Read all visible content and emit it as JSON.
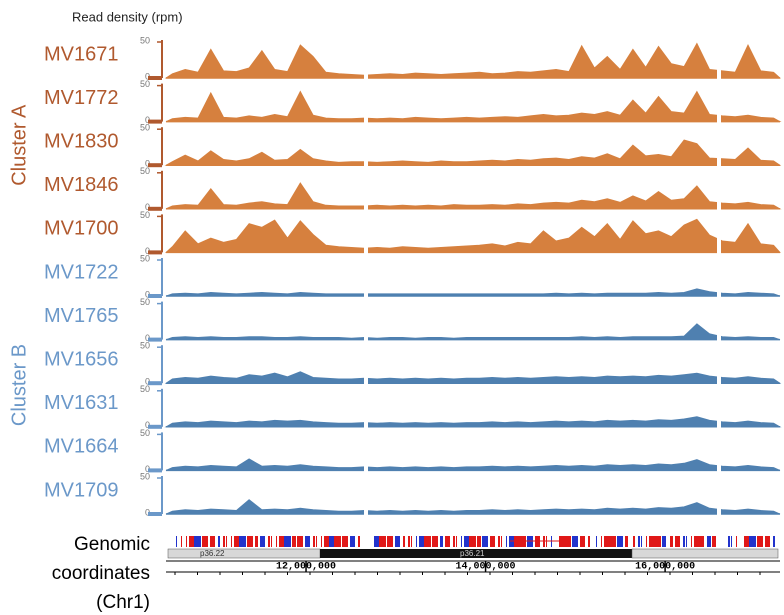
{
  "chart_data": {
    "type": "area",
    "y_label": "Read density (rpm)",
    "ylim": [
      0,
      50
    ],
    "yticks": [
      50,
      0
    ],
    "xlim": [
      10440000,
      17280000
    ],
    "xticks": [
      {
        "value": 12000000,
        "label": "12,000,000"
      },
      {
        "value": 14000000,
        "label": "14,000,000"
      },
      {
        "value": 16000000,
        "label": "16,000,000"
      }
    ],
    "x_label": [
      "Genomic",
      "coordinates",
      "(Chr1)"
    ],
    "bands": [
      "p36.22",
      "p36.21"
    ],
    "groups": [
      {
        "name": "Cluster A",
        "color": "#b0592e"
      },
      {
        "name": "Cluster B",
        "color": "#6b98c9"
      }
    ],
    "series": [
      {
        "name": "MV1671",
        "group": 0,
        "color": "#d6803e",
        "values": [
          6,
          12,
          8,
          40,
          10,
          9,
          14,
          38,
          12,
          9,
          46,
          30,
          8,
          6,
          5,
          4,
          5,
          6,
          5,
          7,
          6,
          5,
          6,
          7,
          8,
          6,
          7,
          9,
          8,
          10,
          12,
          9,
          45,
          14,
          30,
          12,
          40,
          15,
          44,
          20,
          16,
          48,
          12,
          10,
          8,
          46,
          10,
          8
        ]
      },
      {
        "name": "MV1772",
        "group": 0,
        "color": "#d6803e",
        "values": [
          4,
          6,
          5,
          40,
          6,
          5,
          8,
          6,
          10,
          7,
          42,
          9,
          5,
          4,
          4,
          5,
          4,
          5,
          4,
          6,
          5,
          4,
          5,
          6,
          5,
          6,
          7,
          6,
          8,
          10,
          8,
          9,
          12,
          10,
          14,
          9,
          30,
          12,
          35,
          14,
          12,
          42,
          10,
          8,
          7,
          9,
          6,
          5
        ]
      },
      {
        "name": "MV1830",
        "group": 0,
        "color": "#d6803e",
        "values": [
          5,
          14,
          6,
          20,
          8,
          6,
          9,
          18,
          7,
          8,
          22,
          9,
          6,
          4,
          5,
          5,
          4,
          5,
          6,
          5,
          4,
          6,
          5,
          5,
          6,
          7,
          6,
          8,
          7,
          9,
          10,
          8,
          12,
          10,
          16,
          9,
          28,
          13,
          15,
          12,
          35,
          30,
          10,
          9,
          8,
          24,
          7,
          6
        ]
      },
      {
        "name": "MV1846",
        "group": 0,
        "color": "#d6803e",
        "values": [
          4,
          6,
          5,
          28,
          6,
          5,
          8,
          10,
          7,
          6,
          36,
          10,
          5,
          4,
          4,
          4,
          5,
          4,
          5,
          4,
          5,
          4,
          6,
          5,
          5,
          6,
          5,
          7,
          6,
          8,
          9,
          8,
          12,
          10,
          14,
          9,
          18,
          11,
          24,
          12,
          14,
          32,
          10,
          8,
          7,
          9,
          6,
          5
        ]
      },
      {
        "name": "MV1700",
        "group": 0,
        "color": "#d6803e",
        "values": [
          8,
          30,
          12,
          20,
          14,
          18,
          40,
          35,
          45,
          20,
          44,
          25,
          10,
          8,
          7,
          6,
          7,
          6,
          8,
          7,
          6,
          7,
          8,
          9,
          10,
          12,
          9,
          14,
          12,
          30,
          16,
          20,
          35,
          22,
          40,
          18,
          44,
          26,
          30,
          22,
          38,
          46,
          24,
          16,
          14,
          40,
          12,
          10
        ]
      },
      {
        "name": "MV1722",
        "group": 1,
        "color": "#4f80b0",
        "values": [
          3,
          4,
          3,
          5,
          4,
          3,
          4,
          5,
          4,
          3,
          5,
          4,
          3,
          3,
          3,
          3,
          3,
          3,
          3,
          3,
          3,
          3,
          3,
          3,
          3,
          3,
          3,
          3,
          3,
          3,
          4,
          3,
          4,
          3,
          4,
          4,
          4,
          4,
          5,
          4,
          5,
          10,
          6,
          4,
          3,
          5,
          4,
          3
        ]
      },
      {
        "name": "MV1765",
        "group": 1,
        "color": "#4f80b0",
        "values": [
          3,
          4,
          3,
          4,
          3,
          3,
          4,
          4,
          3,
          3,
          4,
          3,
          3,
          3,
          2,
          3,
          2,
          3,
          3,
          2,
          3,
          3,
          2,
          3,
          3,
          3,
          3,
          3,
          3,
          3,
          3,
          3,
          4,
          3,
          4,
          3,
          4,
          4,
          4,
          4,
          5,
          22,
          8,
          4,
          3,
          4,
          3,
          3
        ]
      },
      {
        "name": "MV1656",
        "group": 1,
        "color": "#4f80b0",
        "values": [
          6,
          8,
          7,
          10,
          8,
          7,
          12,
          10,
          14,
          9,
          16,
          8,
          7,
          6,
          6,
          7,
          6,
          7,
          6,
          7,
          6,
          7,
          6,
          7,
          7,
          8,
          7,
          8,
          7,
          8,
          9,
          8,
          9,
          8,
          10,
          9,
          10,
          9,
          11,
          10,
          12,
          14,
          10,
          8,
          7,
          9,
          7,
          6
        ]
      },
      {
        "name": "MV1631",
        "group": 1,
        "color": "#4f80b0",
        "values": [
          5,
          7,
          6,
          8,
          7,
          6,
          8,
          7,
          9,
          8,
          9,
          7,
          6,
          5,
          5,
          6,
          5,
          6,
          5,
          6,
          5,
          6,
          5,
          6,
          6,
          7,
          6,
          7,
          6,
          7,
          8,
          7,
          8,
          7,
          9,
          8,
          9,
          8,
          10,
          9,
          11,
          14,
          9,
          7,
          6,
          8,
          6,
          5
        ]
      },
      {
        "name": "MV1664",
        "group": 1,
        "color": "#4f80b0",
        "values": [
          4,
          6,
          5,
          7,
          6,
          5,
          16,
          6,
          7,
          6,
          8,
          6,
          5,
          4,
          4,
          5,
          4,
          5,
          4,
          5,
          4,
          5,
          4,
          5,
          5,
          6,
          5,
          6,
          5,
          6,
          7,
          6,
          7,
          6,
          8,
          7,
          8,
          7,
          9,
          8,
          10,
          15,
          8,
          6,
          5,
          7,
          5,
          4
        ]
      },
      {
        "name": "MV1709",
        "group": 1,
        "color": "#4f80b0",
        "values": [
          4,
          6,
          5,
          7,
          6,
          5,
          20,
          6,
          7,
          6,
          8,
          6,
          5,
          4,
          4,
          5,
          4,
          5,
          4,
          5,
          4,
          5,
          4,
          5,
          5,
          6,
          5,
          6,
          5,
          6,
          7,
          6,
          7,
          6,
          8,
          7,
          8,
          7,
          9,
          8,
          10,
          16,
          8,
          6,
          5,
          7,
          5,
          4
        ]
      }
    ]
  }
}
